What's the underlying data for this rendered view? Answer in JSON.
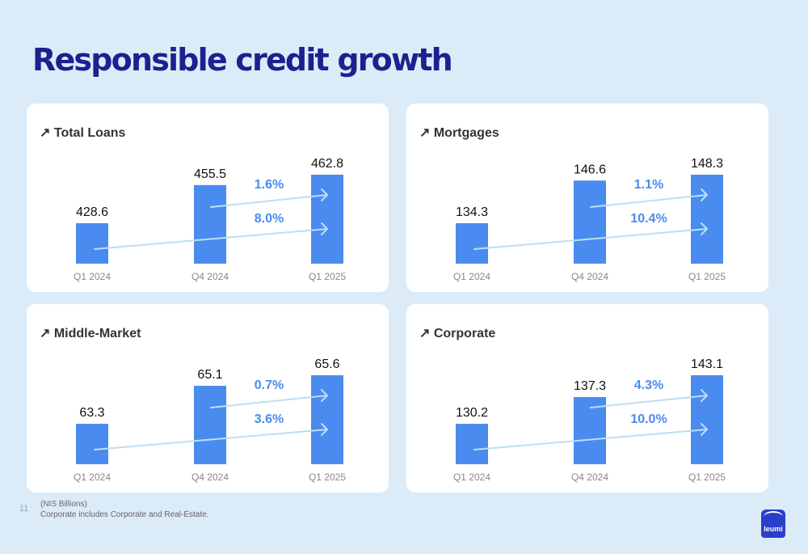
{
  "page": {
    "title": "Responsible credit growth",
    "page_number": "11",
    "footnote_units": "(NIS Billions)",
    "footnote_note": "Corporate includes Corporate and Real-Estate.",
    "logo_text": "leumi"
  },
  "colors": {
    "background": "#dcebf8",
    "title": "#1f1f8f",
    "bar": "#4a8bf0",
    "growth_label": "#4a8bf0",
    "arrow": "#bcdff3",
    "logo": "#2b3ec9"
  },
  "chart_data": [
    {
      "type": "bar",
      "title": "↗ Total Loans",
      "categories": [
        "Q1 2024",
        "Q4 2024",
        "Q1 2025"
      ],
      "values": [
        428.6,
        455.5,
        462.8
      ],
      "value_labels": [
        "428.6",
        "455.5",
        "462.8"
      ],
      "growth": [
        {
          "label": "1.6%",
          "from": "Q4 2024",
          "to": "Q1 2025"
        },
        {
          "label": "8.0%",
          "from": "Q1 2024",
          "to": "Q1 2025"
        }
      ]
    },
    {
      "type": "bar",
      "title": "↗ Mortgages",
      "categories": [
        "Q1 2024",
        "Q4 2024",
        "Q1 2025"
      ],
      "values": [
        134.3,
        146.6,
        148.3
      ],
      "value_labels": [
        "134.3",
        "146.6",
        "148.3"
      ],
      "growth": [
        {
          "label": "1.1%",
          "from": "Q4 2024",
          "to": "Q1 2025"
        },
        {
          "label": "10.4%",
          "from": "Q1 2024",
          "to": "Q1 2025"
        }
      ]
    },
    {
      "type": "bar",
      "title": "↗ Middle-Market",
      "categories": [
        "Q1 2024",
        "Q4 2024",
        "Q1 2025"
      ],
      "values": [
        63.3,
        65.1,
        65.6
      ],
      "value_labels": [
        "63.3",
        "65.1",
        "65.6"
      ],
      "growth": [
        {
          "label": "0.7%",
          "from": "Q4 2024",
          "to": "Q1 2025"
        },
        {
          "label": "3.6%",
          "from": "Q1 2024",
          "to": "Q1 2025"
        }
      ]
    },
    {
      "type": "bar",
      "title": "↗ Corporate",
      "categories": [
        "Q1 2024",
        "Q4 2024",
        "Q1 2025"
      ],
      "values": [
        130.2,
        137.3,
        143.1
      ],
      "value_labels": [
        "130.2",
        "137.3",
        "143.1"
      ],
      "growth": [
        {
          "label": "4.3%",
          "from": "Q4 2024",
          "to": "Q1 2025"
        },
        {
          "label": "10.0%",
          "from": "Q1 2024",
          "to": "Q1 2025"
        }
      ]
    }
  ]
}
